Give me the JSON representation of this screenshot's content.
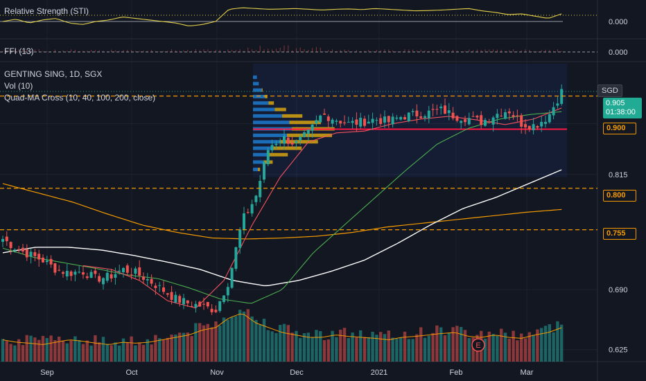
{
  "header": {
    "sti_label": "Relative Strength (STI)",
    "ffi_label": "FFI (13)",
    "symbol": "GENTING SING, 1D, SGX",
    "vol": "Vol (10)",
    "quadma": "Quad-MA Cross (10, 40, 100, 200, close)",
    "currency": "SGD",
    "countdown": "01:38:00",
    "earnings": "E"
  },
  "colors": {
    "background": "#131722",
    "up": "#26a69a",
    "down": "#ef5350",
    "ma10": "#f7525f",
    "ma40": "#4caf50",
    "ma100": "#ffffff",
    "ma200": "#f59b00",
    "sti": "#e6d34a",
    "vp_up": "#1e88e5",
    "vp_down": "#ffc107",
    "poc": "#ff1744"
  },
  "chart_data": {
    "type": "candlestick",
    "x_tick_labels": [
      "Sep",
      "Oct",
      "Nov",
      "Dec",
      "2021",
      "Feb",
      "Mar"
    ],
    "y_tick_labels": [
      "0.625",
      "0.690",
      "0.815",
      "0.905"
    ],
    "y_range": [
      0.612,
      0.935
    ],
    "price_levels": [
      {
        "label": "0.900",
        "value": 0.9
      },
      {
        "label": "0.800",
        "value": 0.8
      },
      {
        "label": "0.755",
        "value": 0.755
      }
    ],
    "last_price": {
      "label": "0.905",
      "value": 0.905
    },
    "indicator_values": {
      "sti": "0.000",
      "ffi": "0.000"
    },
    "price_anchors": [
      0.745,
      0.735,
      0.728,
      0.722,
      0.712,
      0.708,
      0.71,
      0.702,
      0.704,
      0.712,
      0.708,
      0.7,
      0.69,
      0.68,
      0.675,
      0.672,
      0.668,
      0.7,
      0.765,
      0.79,
      0.845,
      0.855,
      0.848,
      0.86,
      0.88,
      0.875,
      0.87,
      0.872,
      0.875,
      0.872,
      0.878,
      0.88,
      0.882,
      0.885,
      0.878,
      0.876,
      0.872,
      0.88,
      0.885,
      0.87,
      0.868,
      0.878,
      0.905
    ],
    "volume_anchors": [
      0.35,
      0.3,
      0.28,
      0.25,
      0.3,
      0.35,
      0.32,
      0.28,
      0.25,
      0.3,
      0.28,
      0.3,
      0.35,
      0.4,
      0.45,
      0.55,
      0.6,
      0.8,
      0.9,
      0.7,
      0.6,
      0.5,
      0.45,
      0.4,
      0.4,
      0.45,
      0.42,
      0.4,
      0.38,
      0.35,
      0.4,
      0.42,
      0.45,
      0.48,
      0.5,
      0.42,
      0.4,
      0.45,
      0.4,
      0.38,
      0.45,
      0.5,
      0.6
    ],
    "ma10_anchors": [
      0.716,
      0.712,
      0.7,
      0.678,
      0.67,
      0.7,
      0.76,
      0.812,
      0.85,
      0.86,
      0.862,
      0.87,
      0.875,
      0.878,
      0.874,
      0.869,
      0.875,
      0.887
    ],
    "ma40_anchors": [
      0.735,
      0.725,
      0.719,
      0.713,
      0.706,
      0.702,
      0.692,
      0.68,
      0.675,
      0.69,
      0.73,
      0.76,
      0.79,
      0.82,
      0.848,
      0.865,
      0.875,
      0.88,
      0.883
    ],
    "ma100_anchors": [
      0.73,
      0.736,
      0.736,
      0.733,
      0.727,
      0.72,
      0.712,
      0.7,
      0.694,
      0.7,
      0.71,
      0.722,
      0.74,
      0.76,
      0.778,
      0.79,
      0.805,
      0.82
    ],
    "ma200_anchors": [
      0.805,
      0.795,
      0.785,
      0.772,
      0.76,
      0.752,
      0.746,
      0.745,
      0.746,
      0.748,
      0.752,
      0.758,
      0.762,
      0.766,
      0.77,
      0.774,
      0.777
    ],
    "volume_profile": [
      {
        "price": 0.82,
        "up": 0.1,
        "down": 0.05
      },
      {
        "price": 0.828,
        "up": 0.22,
        "down": 0.2
      },
      {
        "price": 0.836,
        "up": 0.3,
        "down": 0.45
      },
      {
        "price": 0.843,
        "up": 0.4,
        "down": 0.65
      },
      {
        "price": 0.85,
        "up": 0.55,
        "down": 0.85
      },
      {
        "price": 0.857,
        "up": 0.7,
        "down": 1.0
      },
      {
        "price": 0.864,
        "up": 0.8,
        "down": 0.95
      },
      {
        "price": 0.871,
        "up": 0.75,
        "down": 0.7
      },
      {
        "price": 0.878,
        "up": 0.6,
        "down": 0.45
      },
      {
        "price": 0.885,
        "up": 0.45,
        "down": 0.25
      },
      {
        "price": 0.892,
        "up": 0.32,
        "down": 0.12
      },
      {
        "price": 0.899,
        "up": 0.25,
        "down": 0.05
      },
      {
        "price": 0.906,
        "up": 0.18,
        "down": 0.02
      },
      {
        "price": 0.913,
        "up": 0.12,
        "down": 0.0
      },
      {
        "price": 0.92,
        "up": 0.08,
        "down": 0.0
      }
    ],
    "poc_price": 0.864,
    "sti_anchors": [
      0.0,
      0.15,
      -0.1,
      0.1,
      0.2,
      -0.1,
      -0.2,
      0.0,
      0.1,
      0.3,
      0.2,
      0.1,
      0.0,
      -0.1,
      -0.3,
      -0.2,
      0.0,
      0.8,
      0.9,
      0.85,
      0.8,
      0.82,
      0.85,
      0.8,
      0.75,
      0.8,
      0.82,
      0.78,
      0.85,
      0.8,
      0.75,
      0.7,
      0.72,
      0.75,
      0.8,
      0.85,
      0.7,
      0.6,
      0.45,
      0.5,
      0.35,
      0.2,
      0.5
    ]
  }
}
